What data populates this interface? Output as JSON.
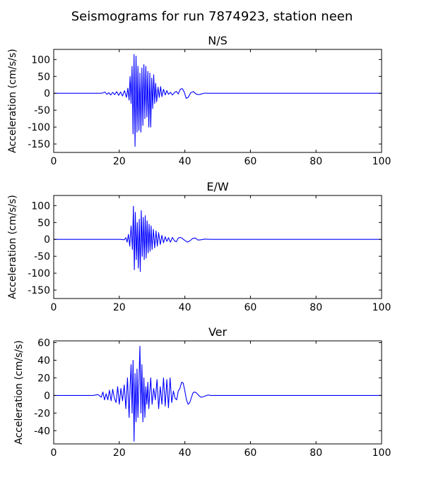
{
  "figure": {
    "title": "Seismograms for run 7874923, station neen"
  },
  "chart_data": [
    {
      "type": "line",
      "title": "N/S",
      "xlabel": "",
      "ylabel": "Acceleration (cm/s/s)",
      "xlim": [
        0,
        100
      ],
      "ylim": [
        -175,
        130
      ],
      "xticks": [
        0,
        20,
        40,
        60,
        80,
        100
      ],
      "yticks": [
        -150,
        -100,
        -50,
        0,
        50,
        100
      ],
      "grid": false,
      "series": [
        {
          "color": "#0000ff",
          "x": [
            0,
            14,
            15,
            15.6,
            16.2,
            16.8,
            17.4,
            18,
            18.6,
            19.2,
            19.8,
            20.4,
            21,
            21.6,
            22.2,
            22.6,
            23,
            23.3,
            23.6,
            23.9,
            24.2,
            24.5,
            24.8,
            25.1,
            25.4,
            25.7,
            26,
            26.3,
            26.6,
            26.9,
            27.2,
            27.5,
            27.8,
            28.1,
            28.4,
            28.7,
            29,
            29.3,
            29.6,
            29.9,
            30.2,
            30.5,
            30.8,
            31.1,
            31.4,
            31.8,
            32.2,
            32.6,
            33,
            33.5,
            34,
            34.5,
            35,
            35.6,
            36.2,
            36.8,
            37.4,
            38,
            38.6,
            39.2,
            39.8,
            40.4,
            41,
            41.8,
            42.6,
            43.4,
            44.2,
            45,
            46,
            47,
            48,
            50,
            100
          ],
          "y": [
            0,
            0,
            1,
            4,
            -3,
            2,
            -5,
            3,
            -4,
            5,
            -6,
            4,
            -8,
            8,
            -12,
            15,
            -20,
            50,
            -30,
            80,
            -120,
            115,
            -157,
            110,
            -115,
            80,
            -110,
            60,
            -115,
            75,
            -95,
            85,
            -75,
            80,
            -70,
            65,
            -100,
            60,
            -100,
            45,
            -45,
            55,
            -30,
            30,
            -25,
            18,
            -12,
            20,
            -10,
            12,
            -5,
            8,
            -3,
            3,
            -5,
            2,
            6,
            -2,
            12,
            14,
            4,
            -15,
            -12,
            2,
            5,
            -2,
            -4,
            -2,
            0.5,
            0,
            0,
            0,
            0
          ]
        }
      ]
    },
    {
      "type": "line",
      "title": "E/W",
      "xlabel": "",
      "ylabel": "Acceleration (cm/s/s)",
      "xlim": [
        0,
        100
      ],
      "ylim": [
        -175,
        130
      ],
      "xticks": [
        0,
        20,
        40,
        60,
        80,
        100
      ],
      "yticks": [
        -150,
        -100,
        -50,
        0,
        50,
        100
      ],
      "grid": false,
      "series": [
        {
          "color": "#0000ff",
          "x": [
            0,
            20,
            21.5,
            22,
            22.4,
            22.8,
            23.2,
            23.6,
            24,
            24.3,
            24.6,
            24.9,
            25.2,
            25.5,
            25.8,
            26.1,
            26.4,
            26.7,
            27,
            27.3,
            27.6,
            27.9,
            28.2,
            28.5,
            28.8,
            29.1,
            29.4,
            29.7,
            30,
            30.4,
            30.8,
            31.2,
            31.6,
            32,
            32.5,
            33,
            33.5,
            34,
            34.5,
            35,
            35.6,
            36.2,
            36.8,
            37.4,
            38,
            38.6,
            39.2,
            40,
            40.8,
            41.6,
            42.4,
            43.2,
            44,
            45,
            46,
            48,
            100
          ],
          "y": [
            0,
            0,
            -1,
            5,
            -8,
            15,
            -20,
            40,
            -30,
            98,
            -90,
            80,
            -60,
            50,
            -85,
            60,
            -95,
            85,
            -50,
            65,
            -60,
            70,
            -55,
            55,
            -40,
            45,
            -35,
            40,
            -30,
            30,
            -25,
            25,
            -20,
            20,
            -15,
            12,
            -10,
            8,
            -6,
            5,
            -8,
            6,
            -4,
            -7,
            4,
            6,
            3,
            -3,
            -8,
            -4,
            3,
            4,
            -2,
            -1,
            1,
            0,
            0
          ]
        }
      ]
    },
    {
      "type": "line",
      "title": "Ver",
      "xlabel": "",
      "ylabel": "Acceleration (cm/s/s)",
      "xlim": [
        0,
        100
      ],
      "ylim": [
        -55,
        62
      ],
      "xticks": [
        0,
        20,
        40,
        60,
        80,
        100
      ],
      "yticks": [
        -40,
        -20,
        0,
        20,
        40,
        60
      ],
      "grid": false,
      "series": [
        {
          "color": "#0000ff",
          "x": [
            0,
            12,
            13.5,
            14.5,
            15,
            15.5,
            16,
            16.5,
            17,
            17.5,
            18,
            18.5,
            19,
            19.5,
            20,
            20.5,
            21,
            21.5,
            22,
            22.5,
            23,
            23.3,
            23.6,
            23.9,
            24.2,
            24.5,
            24.8,
            25.1,
            25.4,
            25.7,
            26,
            26.3,
            26.6,
            26.9,
            27.2,
            27.5,
            27.8,
            28.1,
            28.4,
            28.7,
            29,
            29.3,
            29.6,
            30,
            30.5,
            31,
            31.5,
            32,
            32.5,
            33,
            33.5,
            34,
            34.5,
            35,
            35.5,
            36,
            36.5,
            37,
            37.5,
            38,
            38.5,
            39,
            39.5,
            40,
            40.5,
            41,
            41.5,
            42,
            42.5,
            43,
            43.5,
            44,
            44.5,
            45,
            46,
            47,
            48,
            50,
            52,
            55,
            100
          ],
          "y": [
            0,
            0,
            1,
            -2,
            4,
            -5,
            2,
            -5,
            6,
            -6,
            7,
            -3,
            -8,
            10,
            -10,
            8,
            -6,
            12,
            -15,
            20,
            -25,
            10,
            35,
            -20,
            40,
            -52,
            25,
            -30,
            30,
            -25,
            15,
            56,
            -20,
            35,
            -30,
            20,
            -25,
            10,
            -10,
            15,
            -15,
            5,
            20,
            -10,
            8,
            -5,
            18,
            -15,
            10,
            -10,
            20,
            -12,
            18,
            -14,
            20,
            -8,
            5,
            -3,
            -5,
            5,
            8,
            15,
            14,
            5,
            -5,
            -10,
            -8,
            -2,
            3,
            4,
            3,
            1,
            -1,
            -2,
            -1,
            0.5,
            0,
            0,
            0,
            0,
            0
          ]
        }
      ]
    }
  ]
}
